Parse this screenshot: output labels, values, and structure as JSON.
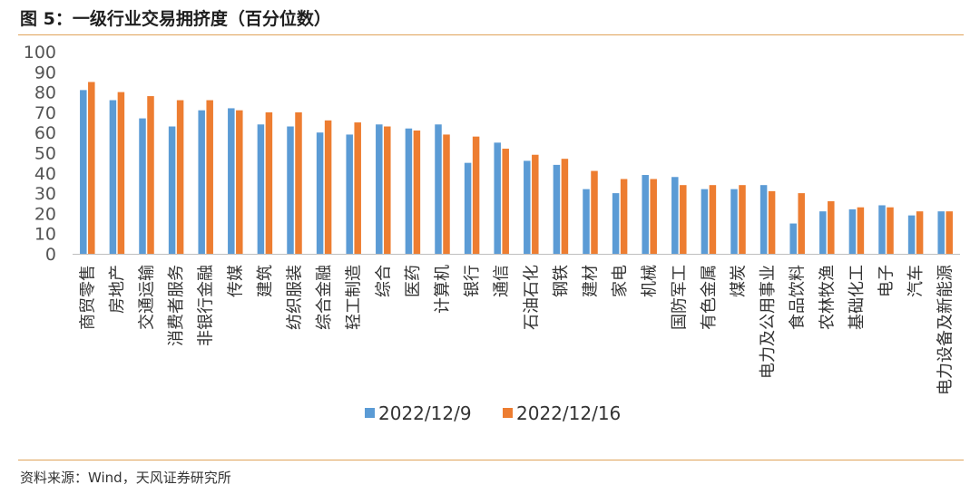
{
  "title": "图 5：一级行业交易拥挤度（百分位数）",
  "source": "资料来源：Wind，天风证券研究所",
  "colors": {
    "series1": "#5b9bd5",
    "series2": "#ed7d31",
    "rule": "#e0a35a"
  },
  "chart_data": {
    "type": "bar",
    "title": "一级行业交易拥挤度（百分位数）",
    "xlabel": "",
    "ylabel": "",
    "ylim": [
      0,
      100
    ],
    "yticks": [
      0,
      10,
      20,
      30,
      40,
      50,
      60,
      70,
      80,
      90,
      100
    ],
    "grid": false,
    "legend_position": "bottom",
    "categories": [
      "商贸零售",
      "房地产",
      "交通运输",
      "消费者服务",
      "非银行金融",
      "传媒",
      "建筑",
      "纺织服装",
      "综合金融",
      "轻工制造",
      "综合",
      "医药",
      "计算机",
      "银行",
      "通信",
      "石油石化",
      "钢铁",
      "建材",
      "家电",
      "机械",
      "国防军工",
      "有色金属",
      "煤炭",
      "电力及公用事业",
      "食品饮料",
      "农林牧渔",
      "基础化工",
      "电子",
      "汽车",
      "电力设备及新能源"
    ],
    "series": [
      {
        "name": "2022/12/9",
        "values": [
          81,
          76,
          67,
          63,
          71,
          72,
          64,
          63,
          60,
          59,
          64,
          62,
          64,
          45,
          55,
          46,
          44,
          32,
          30,
          39,
          38,
          32,
          32,
          34,
          15,
          21,
          22,
          24,
          19,
          21
        ]
      },
      {
        "name": "2022/12/16",
        "values": [
          85,
          80,
          78,
          76,
          76,
          71,
          70,
          70,
          66,
          65,
          63,
          61,
          59,
          58,
          52,
          49,
          47,
          41,
          37,
          37,
          34,
          34,
          34,
          31,
          30,
          26,
          23,
          23,
          21,
          21
        ]
      }
    ]
  }
}
